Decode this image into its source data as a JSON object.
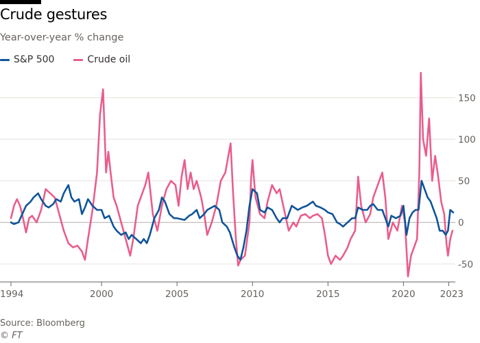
{
  "title": "Crude gestures",
  "subtitle": "Year-over-year % change",
  "source": "Source: Bloomberg",
  "credit": "© FT",
  "colors": {
    "sp500": "#0f5499",
    "crude": "#e95d8c",
    "grid": "#e6e1dc",
    "zero": "#b5aea8",
    "text": "#66605c"
  },
  "chart_data": {
    "type": "line",
    "title": "Crude gestures",
    "subtitle": "Year-over-year % change",
    "xlim": [
      1994.0,
      2023.3
    ],
    "ylim": [
      -65,
      180
    ],
    "y_ticks": [
      150,
      100,
      50,
      0,
      -50
    ],
    "x_ticks": [
      1994,
      2000,
      2005,
      2010,
      2015,
      2020,
      2023
    ],
    "grid": true,
    "y_axis_side": "right",
    "legend_position": "top-left",
    "series": [
      {
        "name": "S&P 500",
        "color": "#0f5499",
        "points": [
          [
            1994.0,
            0
          ],
          [
            1994.2,
            -2
          ],
          [
            1994.5,
            0
          ],
          [
            1994.8,
            12
          ],
          [
            1995.0,
            20
          ],
          [
            1995.3,
            25
          ],
          [
            1995.5,
            30
          ],
          [
            1995.8,
            35
          ],
          [
            1996.0,
            28
          ],
          [
            1996.3,
            20
          ],
          [
            1996.5,
            18
          ],
          [
            1996.8,
            22
          ],
          [
            1997.0,
            28
          ],
          [
            1997.3,
            25
          ],
          [
            1997.5,
            35
          ],
          [
            1997.8,
            45
          ],
          [
            1998.0,
            30
          ],
          [
            1998.2,
            25
          ],
          [
            1998.5,
            28
          ],
          [
            1998.7,
            10
          ],
          [
            1998.9,
            18
          ],
          [
            1999.1,
            28
          ],
          [
            1999.4,
            20
          ],
          [
            1999.7,
            15
          ],
          [
            2000.0,
            15
          ],
          [
            2000.2,
            5
          ],
          [
            2000.5,
            8
          ],
          [
            2000.8,
            -5
          ],
          [
            2001.0,
            -10
          ],
          [
            2001.3,
            -15
          ],
          [
            2001.6,
            -12
          ],
          [
            2001.8,
            -20
          ],
          [
            2002.0,
            -15
          ],
          [
            2002.3,
            -20
          ],
          [
            2002.6,
            -25
          ],
          [
            2002.8,
            -20
          ],
          [
            2003.0,
            -25
          ],
          [
            2003.2,
            -15
          ],
          [
            2003.5,
            5
          ],
          [
            2003.8,
            15
          ],
          [
            2004.0,
            30
          ],
          [
            2004.2,
            25
          ],
          [
            2004.5,
            10
          ],
          [
            2004.8,
            5
          ],
          [
            2005.0,
            5
          ],
          [
            2005.5,
            3
          ],
          [
            2005.8,
            8
          ],
          [
            2006.0,
            10
          ],
          [
            2006.3,
            15
          ],
          [
            2006.5,
            5
          ],
          [
            2006.8,
            10
          ],
          [
            2007.0,
            15
          ],
          [
            2007.3,
            18
          ],
          [
            2007.5,
            20
          ],
          [
            2007.8,
            15
          ],
          [
            2008.0,
            0
          ],
          [
            2008.3,
            -5
          ],
          [
            2008.5,
            -12
          ],
          [
            2008.8,
            -30
          ],
          [
            2009.0,
            -40
          ],
          [
            2009.2,
            -45
          ],
          [
            2009.4,
            -30
          ],
          [
            2009.6,
            -10
          ],
          [
            2009.8,
            20
          ],
          [
            2010.0,
            40
          ],
          [
            2010.3,
            35
          ],
          [
            2010.5,
            15
          ],
          [
            2010.8,
            12
          ],
          [
            2011.0,
            18
          ],
          [
            2011.3,
            15
          ],
          [
            2011.6,
            5
          ],
          [
            2011.8,
            0
          ],
          [
            2012.0,
            5
          ],
          [
            2012.3,
            5
          ],
          [
            2012.6,
            20
          ],
          [
            2013.0,
            15
          ],
          [
            2013.3,
            18
          ],
          [
            2013.6,
            20
          ],
          [
            2014.0,
            25
          ],
          [
            2014.2,
            20
          ],
          [
            2014.5,
            18
          ],
          [
            2014.8,
            15
          ],
          [
            2015.0,
            12
          ],
          [
            2015.3,
            10
          ],
          [
            2015.6,
            0
          ],
          [
            2015.8,
            -2
          ],
          [
            2016.0,
            -5
          ],
          [
            2016.3,
            0
          ],
          [
            2016.6,
            5
          ],
          [
            2016.8,
            5
          ],
          [
            2017.0,
            18
          ],
          [
            2017.3,
            15
          ],
          [
            2017.6,
            15
          ],
          [
            2017.8,
            20
          ],
          [
            2018.0,
            22
          ],
          [
            2018.3,
            15
          ],
          [
            2018.6,
            15
          ],
          [
            2018.8,
            5
          ],
          [
            2019.0,
            -5
          ],
          [
            2019.2,
            8
          ],
          [
            2019.5,
            5
          ],
          [
            2019.8,
            8
          ],
          [
            2020.0,
            20
          ],
          [
            2020.2,
            -15
          ],
          [
            2020.4,
            5
          ],
          [
            2020.6,
            12
          ],
          [
            2020.8,
            15
          ],
          [
            2021.0,
            15
          ],
          [
            2021.2,
            50
          ],
          [
            2021.4,
            40
          ],
          [
            2021.6,
            30
          ],
          [
            2021.8,
            25
          ],
          [
            2022.0,
            15
          ],
          [
            2022.2,
            5
          ],
          [
            2022.4,
            -10
          ],
          [
            2022.6,
            -10
          ],
          [
            2022.8,
            -15
          ],
          [
            2022.95,
            -10
          ],
          [
            2023.1,
            15
          ],
          [
            2023.3,
            12
          ]
        ]
      },
      {
        "name": "Crude oil",
        "color": "#e95d8c",
        "points": [
          [
            1994.0,
            5
          ],
          [
            1994.2,
            20
          ],
          [
            1994.4,
            28
          ],
          [
            1994.6,
            20
          ],
          [
            1994.8,
            5
          ],
          [
            1995.0,
            -12
          ],
          [
            1995.2,
            5
          ],
          [
            1995.4,
            8
          ],
          [
            1995.7,
            0
          ],
          [
            1996.0,
            15
          ],
          [
            1996.3,
            40
          ],
          [
            1996.6,
            35
          ],
          [
            1996.9,
            30
          ],
          [
            1997.2,
            10
          ],
          [
            1997.5,
            -10
          ],
          [
            1997.8,
            -25
          ],
          [
            1998.1,
            -30
          ],
          [
            1998.4,
            -28
          ],
          [
            1998.7,
            -35
          ],
          [
            1998.9,
            -45
          ],
          [
            1999.1,
            -20
          ],
          [
            1999.4,
            15
          ],
          [
            1999.7,
            60
          ],
          [
            1999.9,
            130
          ],
          [
            2000.1,
            160
          ],
          [
            2000.3,
            60
          ],
          [
            2000.45,
            85
          ],
          [
            2000.6,
            60
          ],
          [
            2000.8,
            30
          ],
          [
            2001.0,
            20
          ],
          [
            2001.3,
            0
          ],
          [
            2001.6,
            -20
          ],
          [
            2001.9,
            -40
          ],
          [
            2002.1,
            -20
          ],
          [
            2002.4,
            20
          ],
          [
            2002.6,
            30
          ],
          [
            2002.9,
            45
          ],
          [
            2003.1,
            60
          ],
          [
            2003.4,
            10
          ],
          [
            2003.7,
            -10
          ],
          [
            2004.0,
            20
          ],
          [
            2004.3,
            40
          ],
          [
            2004.6,
            50
          ],
          [
            2004.9,
            45
          ],
          [
            2005.1,
            20
          ],
          [
            2005.3,
            55
          ],
          [
            2005.5,
            75
          ],
          [
            2005.7,
            40
          ],
          [
            2005.9,
            60
          ],
          [
            2006.1,
            40
          ],
          [
            2006.3,
            50
          ],
          [
            2006.6,
            30
          ],
          [
            2006.8,
            10
          ],
          [
            2007.0,
            -15
          ],
          [
            2007.3,
            0
          ],
          [
            2007.6,
            20
          ],
          [
            2007.9,
            50
          ],
          [
            2008.2,
            60
          ],
          [
            2008.4,
            80
          ],
          [
            2008.55,
            95
          ],
          [
            2008.7,
            40
          ],
          [
            2008.9,
            -20
          ],
          [
            2009.05,
            -52
          ],
          [
            2009.2,
            -45
          ],
          [
            2009.5,
            -40
          ],
          [
            2009.8,
            0
          ],
          [
            2009.9,
            50
          ],
          [
            2010.0,
            75
          ],
          [
            2010.2,
            30
          ],
          [
            2010.5,
            10
          ],
          [
            2010.8,
            5
          ],
          [
            2011.0,
            25
          ],
          [
            2011.3,
            45
          ],
          [
            2011.6,
            35
          ],
          [
            2011.8,
            40
          ],
          [
            2012.1,
            15
          ],
          [
            2012.4,
            -10
          ],
          [
            2012.7,
            0
          ],
          [
            2012.9,
            -5
          ],
          [
            2013.2,
            8
          ],
          [
            2013.5,
            10
          ],
          [
            2013.8,
            5
          ],
          [
            2014.0,
            8
          ],
          [
            2014.3,
            10
          ],
          [
            2014.6,
            5
          ],
          [
            2014.8,
            -15
          ],
          [
            2015.0,
            -40
          ],
          [
            2015.2,
            -50
          ],
          [
            2015.5,
            -40
          ],
          [
            2015.8,
            -45
          ],
          [
            2016.0,
            -40
          ],
          [
            2016.3,
            -30
          ],
          [
            2016.5,
            -20
          ],
          [
            2016.8,
            -10
          ],
          [
            2017.0,
            55
          ],
          [
            2017.2,
            20
          ],
          [
            2017.5,
            0
          ],
          [
            2017.8,
            10
          ],
          [
            2018.0,
            30
          ],
          [
            2018.3,
            45
          ],
          [
            2018.6,
            60
          ],
          [
            2018.8,
            30
          ],
          [
            2019.0,
            -20
          ],
          [
            2019.3,
            0
          ],
          [
            2019.6,
            -10
          ],
          [
            2019.9,
            20
          ],
          [
            2020.1,
            0
          ],
          [
            2020.3,
            -65
          ],
          [
            2020.5,
            -40
          ],
          [
            2020.7,
            -30
          ],
          [
            2020.9,
            -20
          ],
          [
            2021.05,
            60
          ],
          [
            2021.15,
            180
          ],
          [
            2021.3,
            100
          ],
          [
            2021.5,
            80
          ],
          [
            2021.7,
            125
          ],
          [
            2021.9,
            50
          ],
          [
            2022.1,
            80
          ],
          [
            2022.3,
            55
          ],
          [
            2022.5,
            25
          ],
          [
            2022.7,
            10
          ],
          [
            2022.85,
            -25
          ],
          [
            2022.95,
            -40
          ],
          [
            2023.1,
            -20
          ],
          [
            2023.25,
            -10
          ]
        ]
      }
    ]
  }
}
